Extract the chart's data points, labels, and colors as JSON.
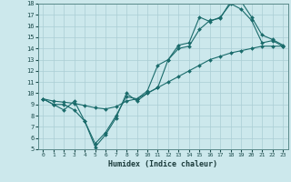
{
  "xlabel": "Humidex (Indice chaleur)",
  "xlim": [
    -0.5,
    23.5
  ],
  "ylim": [
    5,
    18
  ],
  "xticks": [
    0,
    1,
    2,
    3,
    4,
    5,
    6,
    7,
    8,
    9,
    10,
    11,
    12,
    13,
    14,
    15,
    16,
    17,
    18,
    19,
    20,
    21,
    22,
    23
  ],
  "yticks": [
    5,
    6,
    7,
    8,
    9,
    10,
    11,
    12,
    13,
    14,
    15,
    16,
    17,
    18
  ],
  "bg_color": "#cce8ec",
  "line_color": "#1a6b6b",
  "grid_color": "#aacdd4",
  "line1_x": [
    0,
    1,
    2,
    3,
    4,
    5,
    6,
    7,
    8,
    9,
    10,
    11,
    12,
    13,
    14,
    15,
    16,
    17,
    18,
    19,
    20,
    21,
    22,
    23
  ],
  "line1_y": [
    9.5,
    9.0,
    8.5,
    9.3,
    7.5,
    5.5,
    6.5,
    8.0,
    9.7,
    9.5,
    10.2,
    12.5,
    13.0,
    14.3,
    14.5,
    16.8,
    16.4,
    16.8,
    18.0,
    17.5,
    16.5,
    14.5,
    14.7,
    14.2
  ],
  "line2_x": [
    0,
    1,
    2,
    3,
    4,
    5,
    6,
    7,
    8,
    9,
    10,
    11,
    12,
    13,
    14,
    15,
    16,
    17,
    18,
    19,
    20,
    21,
    22,
    23
  ],
  "line2_y": [
    9.5,
    9.0,
    9.0,
    8.5,
    7.5,
    5.2,
    6.3,
    7.8,
    10.0,
    9.3,
    10.0,
    10.5,
    13.0,
    14.0,
    14.2,
    15.7,
    16.5,
    16.7,
    18.2,
    18.2,
    16.8,
    15.2,
    14.8,
    14.3
  ],
  "line3_x": [
    0,
    1,
    2,
    3,
    4,
    5,
    6,
    7,
    8,
    9,
    10,
    11,
    12,
    13,
    14,
    15,
    16,
    17,
    18,
    19,
    20,
    21,
    22,
    23
  ],
  "line3_y": [
    9.5,
    9.3,
    9.2,
    9.1,
    8.9,
    8.7,
    8.6,
    8.8,
    9.3,
    9.5,
    10.0,
    10.5,
    11.0,
    11.5,
    12.0,
    12.5,
    13.0,
    13.3,
    13.6,
    13.8,
    14.0,
    14.2,
    14.2,
    14.2
  ]
}
